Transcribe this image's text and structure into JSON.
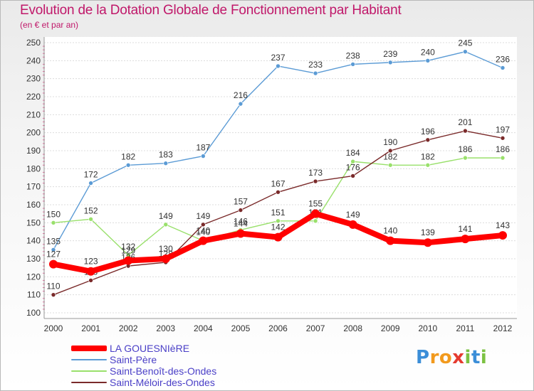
{
  "title": "Evolution de la Dotation Globale de Fonctionnement par Habitant",
  "subtitle": "(en € et par an)",
  "logo": {
    "letters": [
      "P",
      "r",
      "o",
      "x",
      "i",
      "t",
      "i"
    ],
    "colors": [
      "#3b8ed8",
      "#f29a1d",
      "#f29a1d",
      "#e53a2f",
      "#7cc242",
      "#3b8ed8",
      "#7cc242"
    ]
  },
  "chart_data": {
    "type": "line",
    "title": "Evolution de la Dotation Globale de Fonctionnement par Habitant",
    "ylabel": "(en € et par an)",
    "xlabel": "",
    "x": [
      2000,
      2001,
      2002,
      2003,
      2004,
      2005,
      2006,
      2007,
      2008,
      2009,
      2010,
      2011,
      2012
    ],
    "x_labels": [
      "2000",
      "2001",
      "2002",
      "2003",
      "2004",
      "2005",
      "2006",
      "2007",
      "2008",
      "2009",
      "2010",
      "2011",
      "2012"
    ],
    "ylim": [
      100,
      250
    ],
    "yticks": [
      100,
      110,
      120,
      130,
      140,
      150,
      160,
      170,
      180,
      190,
      200,
      210,
      220,
      230,
      240,
      250
    ],
    "grid": "horizontal",
    "legend": "bottom-left",
    "series": [
      {
        "name": "LA GOUESNIèRE",
        "color": "#ff0000",
        "emphasis": true,
        "values": [
          127,
          123,
          129,
          130,
          140,
          144,
          142,
          155,
          149,
          140,
          139,
          141,
          143
        ],
        "labels": [
          "127",
          "123",
          "129",
          "130",
          "140",
          "144",
          "142",
          "155",
          "149",
          "140",
          "139",
          "141",
          "143"
        ]
      },
      {
        "name": "Saint-Père",
        "color": "#5b9bd5",
        "emphasis": false,
        "values": [
          135,
          172,
          182,
          183,
          187,
          216,
          237,
          233,
          238,
          239,
          240,
          245,
          236
        ],
        "labels": [
          "135",
          "172",
          "182",
          "183",
          "187",
          "216",
          "237",
          "233",
          "238",
          "239",
          "240",
          "245",
          "236"
        ]
      },
      {
        "name": "Saint-Benoît-des-Ondes",
        "color": "#99e06b",
        "emphasis": false,
        "values": [
          150,
          152,
          132,
          149,
          140,
          146,
          151,
          151,
          184,
          182,
          182,
          186,
          186
        ],
        "labels": [
          "150",
          "152",
          "132",
          "149",
          "140",
          "146",
          "151",
          "151",
          "184",
          "182",
          "182",
          "186",
          "186"
        ]
      },
      {
        "name": "Saint-Méloir-des-Ondes",
        "color": "#7a2a2a",
        "emphasis": false,
        "values": [
          110,
          118,
          126,
          128,
          149,
          157,
          167,
          173,
          176,
          190,
          196,
          201,
          197
        ],
        "labels": [
          "110",
          "118",
          "126",
          "128",
          "149",
          "157",
          "167",
          "173",
          "176",
          "190",
          "196",
          "201",
          "197"
        ]
      }
    ]
  }
}
